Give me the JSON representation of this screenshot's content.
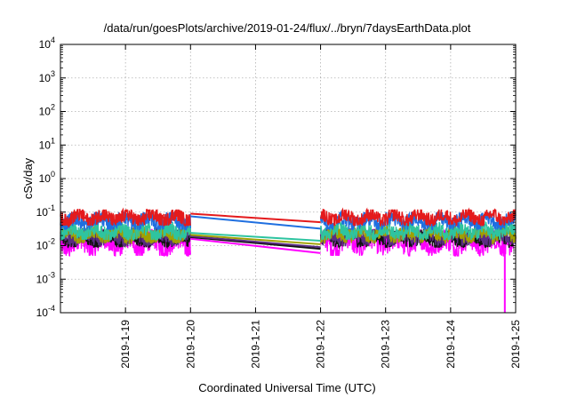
{
  "chart_data": {
    "type": "line",
    "title": "/data/run/goesPlots/archive/2019-01-24/flux/../bryn/7daysEarthData.plot",
    "xlabel": "Coordinated Universal Time (UTC)",
    "ylabel": "cSv/day",
    "yscale": "log",
    "ylim": [
      0.0001,
      10000
    ],
    "xlim": [
      "2019-01-18",
      "2019-01-25"
    ],
    "grid": true,
    "legend": "none",
    "y_ticks": [
      {
        "base": "10",
        "exp": "-4"
      },
      {
        "base": "10",
        "exp": "-3"
      },
      {
        "base": "10",
        "exp": "-2"
      },
      {
        "base": "10",
        "exp": "-1"
      },
      {
        "base": "10",
        "exp": "0"
      },
      {
        "base": "10",
        "exp": "1"
      },
      {
        "base": "10",
        "exp": "2"
      },
      {
        "base": "10",
        "exp": "3"
      },
      {
        "base": "10",
        "exp": "4"
      }
    ],
    "x_ticks": [
      "2019-1-19",
      "2019-1-20",
      "2019-1-21",
      "2019-1-22",
      "2019-1-23",
      "2019-1-24",
      "2019-1-25"
    ],
    "data_gap": [
      "2019-01-20",
      "2019-01-22"
    ],
    "series": [
      {
        "color": "#e41a1c",
        "values_at_gap": [
          0.09,
          0.05
        ],
        "typical_range": [
          0.04,
          0.12
        ]
      },
      {
        "color": "#1f6fe0",
        "values_at_gap": [
          0.075,
          0.032
        ],
        "typical_range": [
          0.03,
          0.1
        ]
      },
      {
        "color": "#2ec4a0",
        "values_at_gap": [
          0.024,
          0.014
        ],
        "typical_range": [
          0.015,
          0.05
        ]
      },
      {
        "color": "#a0a000",
        "values_at_gap": [
          0.021,
          0.011
        ],
        "typical_range": [
          0.012,
          0.04
        ]
      },
      {
        "color": "#5a2d82",
        "values_at_gap": [
          0.019,
          0.009
        ],
        "typical_range": [
          0.01,
          0.035
        ]
      },
      {
        "color": "#111111",
        "values_at_gap": [
          0.018,
          0.008
        ],
        "typical_range": [
          0.009,
          0.03
        ]
      },
      {
        "color": "#ff00ff",
        "values_at_gap": [
          0.016,
          0.006
        ],
        "typical_range": [
          0.005,
          0.03
        ]
      }
    ]
  }
}
